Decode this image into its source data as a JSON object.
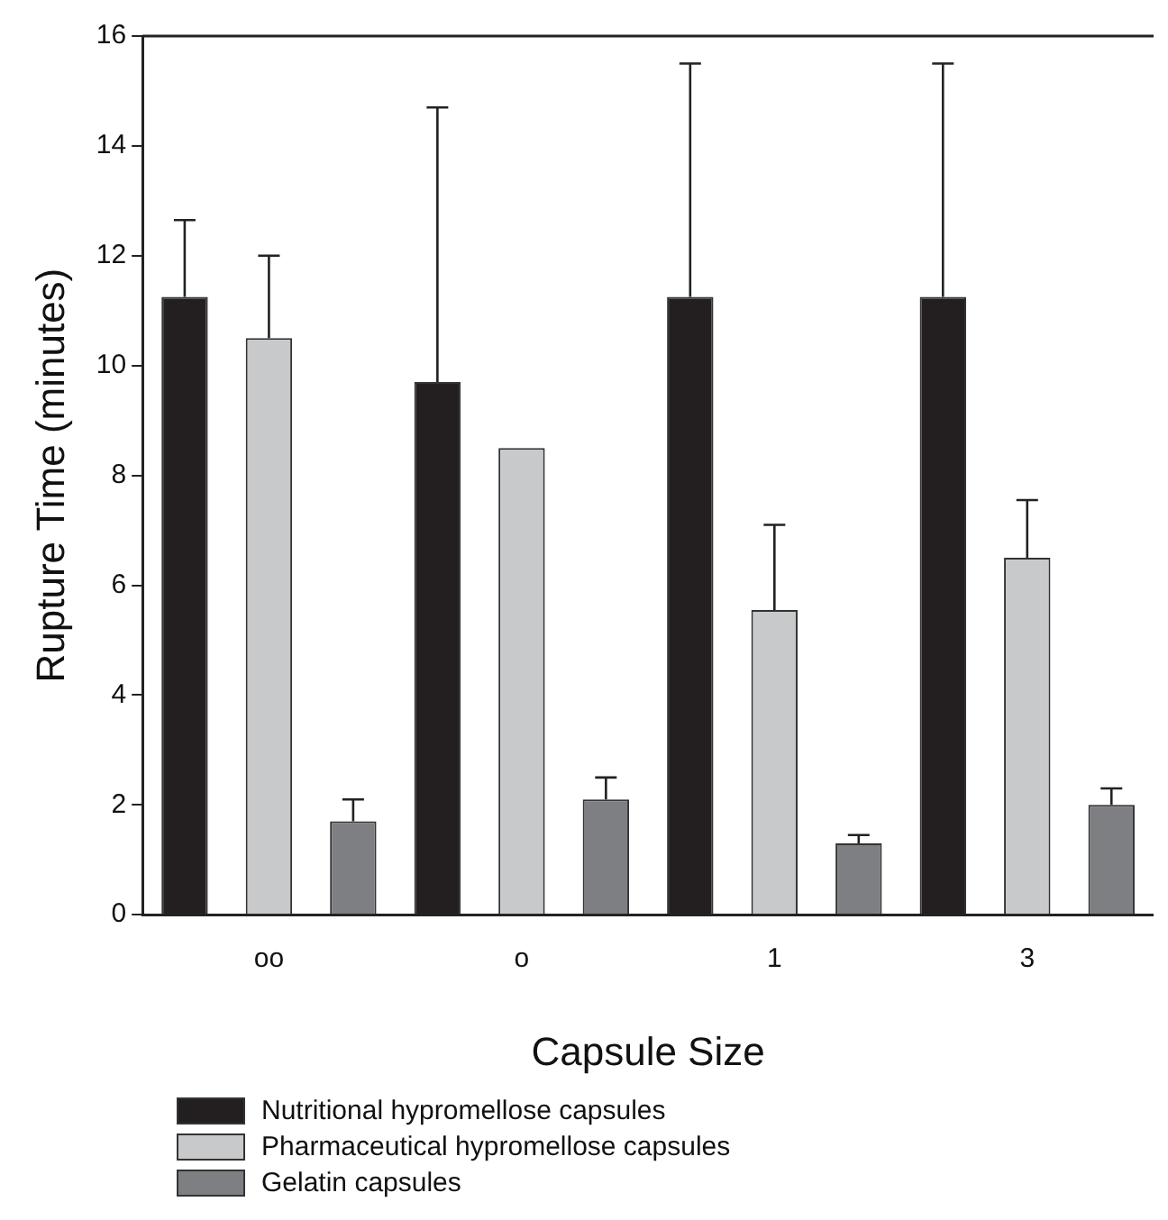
{
  "chart_data": {
    "type": "bar",
    "xlabel": "Capsule Size",
    "ylabel": "Rupture Time (minutes)",
    "categories": [
      "oo",
      "o",
      "1",
      "3"
    ],
    "series": [
      {
        "name": "Nutritional hypromellose capsules",
        "color": "#231f20",
        "values": [
          11.25,
          9.7,
          11.25,
          11.25
        ],
        "errors": [
          [
            11.25,
            12.65
          ],
          [
            9.7,
            14.7
          ],
          [
            11.25,
            15.5
          ],
          [
            11.25,
            15.5
          ]
        ]
      },
      {
        "name": "Pharmaceutical hypromellose capsules",
        "color": "#c8c9cb",
        "values": [
          10.5,
          8.5,
          5.55,
          6.5
        ],
        "errors": [
          [
            10.5,
            12.0
          ],
          null,
          [
            5.55,
            7.1
          ],
          [
            6.5,
            7.55
          ]
        ]
      },
      {
        "name": "Gelatin capsules",
        "color": "#7e7f83",
        "values": [
          1.7,
          2.1,
          1.3,
          2.0
        ],
        "errors": [
          [
            1.7,
            2.1
          ],
          [
            2.1,
            2.5
          ],
          [
            1.3,
            1.45
          ],
          [
            2.0,
            2.3
          ]
        ]
      }
    ],
    "ylim": [
      0,
      16
    ],
    "yticks": [
      0,
      2,
      4,
      6,
      8,
      10,
      12,
      14,
      16
    ],
    "grid": false,
    "legend": "bottom left"
  }
}
